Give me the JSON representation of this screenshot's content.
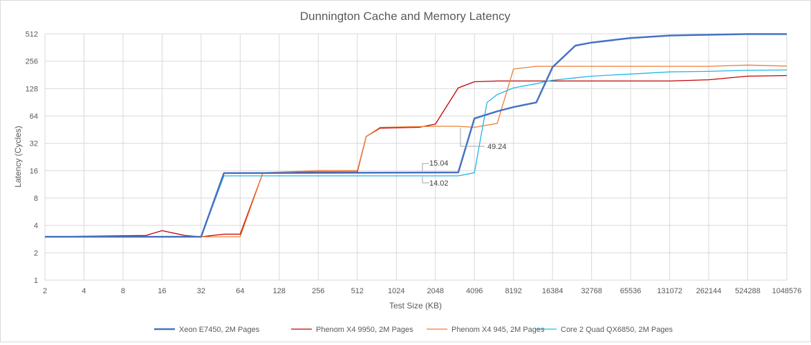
{
  "chart_data": {
    "type": "line",
    "title": "Dunnington Cache and Memory Latency",
    "xlabel": "Test Size (KB)",
    "ylabel": "Latency (Cycles)",
    "x_scale": "log2",
    "y_scale": "log2",
    "xlim": [
      2,
      1048576
    ],
    "ylim": [
      1,
      512
    ],
    "x_ticks": [
      2,
      4,
      8,
      16,
      32,
      64,
      128,
      256,
      512,
      1024,
      2048,
      4096,
      8192,
      16384,
      32768,
      65536,
      131072,
      262144,
      524288,
      1048576
    ],
    "x_tick_labels": [
      "2",
      "4",
      "8",
      "16",
      "32",
      "64",
      "128",
      "256",
      "512",
      "1024",
      "2048",
      "4096",
      "8192",
      "16384",
      "32768",
      "65536",
      "131072",
      "262144",
      "524288",
      "1048576"
    ],
    "y_ticks": [
      1,
      2,
      4,
      8,
      16,
      32,
      64,
      128,
      256,
      512
    ],
    "y_tick_labels": [
      "1",
      "2",
      "4",
      "8",
      "16",
      "32",
      "64",
      "128",
      "256",
      "512"
    ],
    "grid": true,
    "legend_position": "bottom",
    "series": [
      {
        "name": "Xeon E7450, 2M Pages",
        "color": "#4472c4",
        "width": 2.5,
        "points": [
          [
            2,
            3
          ],
          [
            32,
            3
          ],
          [
            48,
            15.04
          ],
          [
            3072,
            15.3
          ],
          [
            4096,
            60
          ],
          [
            6144,
            72
          ],
          [
            8192,
            80
          ],
          [
            12288,
            90
          ],
          [
            16384,
            220
          ],
          [
            24576,
            380
          ],
          [
            32768,
            410
          ],
          [
            65536,
            460
          ],
          [
            131072,
            490
          ],
          [
            262144,
            500
          ],
          [
            524288,
            508
          ],
          [
            1048576,
            508
          ]
        ]
      },
      {
        "name": "Phenom X4 9950, 2M Pages",
        "color": "#c00000",
        "width": 1.3,
        "points": [
          [
            2,
            3
          ],
          [
            12,
            3.1
          ],
          [
            16,
            3.5
          ],
          [
            24,
            3.1
          ],
          [
            32,
            3
          ],
          [
            48,
            3.2
          ],
          [
            64,
            3.2
          ],
          [
            96,
            15.2
          ],
          [
            256,
            15.5
          ],
          [
            512,
            15.5
          ],
          [
            600,
            38
          ],
          [
            768,
            47
          ],
          [
            1536,
            48
          ],
          [
            2048,
            52
          ],
          [
            3072,
            130
          ],
          [
            4096,
            152
          ],
          [
            6144,
            155
          ],
          [
            8192,
            155
          ],
          [
            16384,
            155
          ],
          [
            65536,
            155
          ],
          [
            131072,
            155
          ],
          [
            262144,
            160
          ],
          [
            524288,
            175
          ],
          [
            1048576,
            178
          ]
        ]
      },
      {
        "name": "Phenom X4 945, 2M Pages",
        "color": "#ed7d31",
        "width": 1.3,
        "points": [
          [
            2,
            3
          ],
          [
            32,
            3
          ],
          [
            64,
            3
          ],
          [
            96,
            15.2
          ],
          [
            256,
            16
          ],
          [
            512,
            16
          ],
          [
            600,
            38
          ],
          [
            768,
            48
          ],
          [
            2048,
            49.24
          ],
          [
            3072,
            49.24
          ],
          [
            4096,
            48
          ],
          [
            6144,
            53
          ],
          [
            8192,
            210
          ],
          [
            12288,
            225
          ],
          [
            16384,
            225
          ],
          [
            131072,
            225
          ],
          [
            262144,
            225
          ],
          [
            524288,
            232
          ],
          [
            1048576,
            226
          ]
        ]
      },
      {
        "name": "Core 2 Quad QX6850, 2M Pages",
        "color": "#1fb6e6",
        "width": 1.3,
        "points": [
          [
            2,
            3
          ],
          [
            32,
            3
          ],
          [
            48,
            14.02
          ],
          [
            3072,
            14.02
          ],
          [
            4096,
            15.2
          ],
          [
            5120,
            90
          ],
          [
            6144,
            110
          ],
          [
            8192,
            130
          ],
          [
            12288,
            145
          ],
          [
            16384,
            158
          ],
          [
            24576,
            168
          ],
          [
            32768,
            175
          ],
          [
            65536,
            185
          ],
          [
            131072,
            195
          ],
          [
            262144,
            198
          ],
          [
            524288,
            203
          ],
          [
            1048576,
            205
          ]
        ]
      }
    ],
    "annotations": [
      {
        "text": "15.04",
        "x": 3072,
        "y": 15.04
      },
      {
        "text": "14.02",
        "x": 3072,
        "y": 14.02
      },
      {
        "text": "49.24",
        "x": 3072,
        "y": 49.24
      }
    ]
  }
}
